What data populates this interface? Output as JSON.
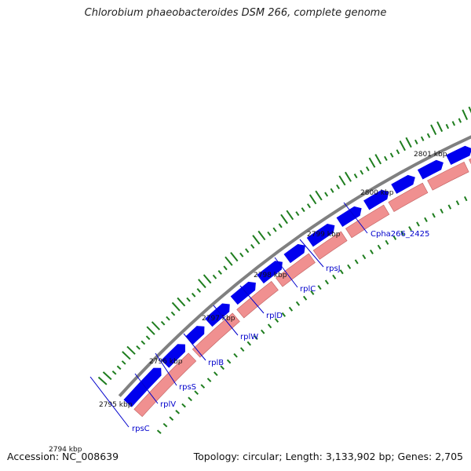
{
  "title": "Chlorobium phaeobacteroides DSM 266, complete genome",
  "footer": {
    "accession": "Accession: NC_008639",
    "summary": "Topology: circular; Length: 3,133,902 bp; Genes: 2,705"
  },
  "colors": {
    "backbone": "#808080",
    "forward_genes": "#0000ee",
    "reverse_genes": "#f09090",
    "gc_ticks": "#1e7d1e",
    "tick_labels": "#111111",
    "gene_labels": "#0000cc"
  },
  "kbp_marks": [
    "2794 kbp",
    "2795 kbp",
    "2796 kbp",
    "2797 kbp",
    "2798 kbp",
    "2799 kbp",
    "2800 kbp",
    "2801 kbp"
  ],
  "gene_labels": [
    "rpsC",
    "rplV",
    "rpsS",
    "rplB",
    "rplW",
    "rplD",
    "rplC",
    "rpsJ",
    "Cpha266_2425"
  ]
}
